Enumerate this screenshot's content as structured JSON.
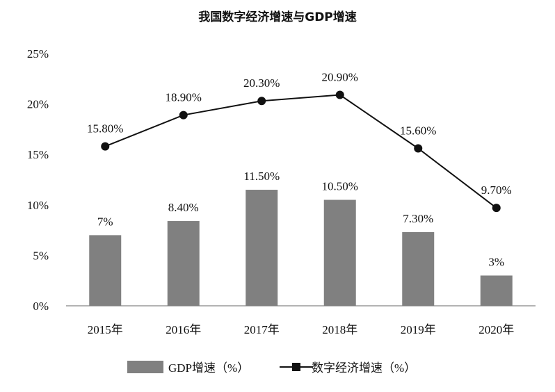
{
  "chart_data": {
    "type": "bar+line",
    "title": "我国数字经济增速与GDP增速",
    "categories": [
      "2015年",
      "2016年",
      "2017年",
      "2018年",
      "2019年",
      "2020年"
    ],
    "ylim": [
      0,
      25
    ],
    "yticks": [
      0,
      5,
      10,
      15,
      20,
      25
    ],
    "ytick_labels": [
      "0%",
      "5%",
      "10%",
      "15%",
      "20%",
      "25%"
    ],
    "grid": false,
    "legend_position": "bottom",
    "series": [
      {
        "name": "GDP增速（%）",
        "type": "bar",
        "color": "#808080",
        "values": [
          7,
          8.4,
          11.5,
          10.5,
          7.3,
          3
        ],
        "labels": [
          "7%",
          "8.40%",
          "11.50%",
          "10.50%",
          "7.30%",
          "3%"
        ]
      },
      {
        "name": "数字经济增速（%）",
        "type": "line",
        "color": "#111111",
        "values": [
          15.8,
          18.9,
          20.3,
          20.9,
          15.6,
          9.7
        ],
        "labels": [
          "15.80%",
          "18.90%",
          "20.30%",
          "20.90%",
          "15.60%",
          "9.70%"
        ]
      }
    ]
  }
}
